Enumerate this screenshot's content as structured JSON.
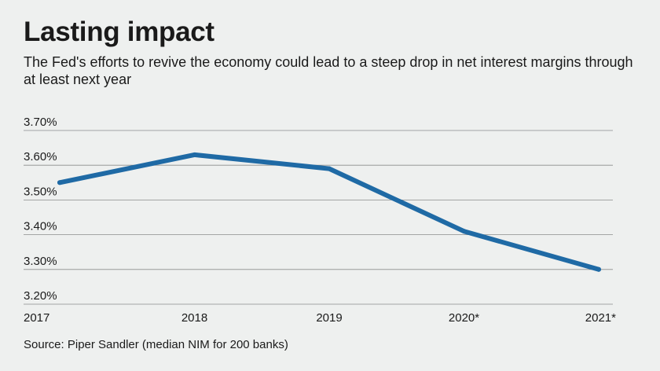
{
  "chart_data": {
    "type": "line",
    "title": "Lasting impact",
    "subtitle": "The Fed's efforts to revive the economy could lead to a steep drop in net interest margins through at least next year",
    "source": "Source: Piper Sandler (median NIM for 200 banks)",
    "categories": [
      "2017",
      "2018",
      "2019",
      "2020*",
      "2021*"
    ],
    "series": [
      {
        "name": "Median NIM",
        "values": [
          3.55,
          3.63,
          3.59,
          3.41,
          3.3
        ],
        "color": "#1f6aa5"
      }
    ],
    "y_ticks": [
      {
        "value": 3.7,
        "label": "3.70%"
      },
      {
        "value": 3.6,
        "label": "3.60%"
      },
      {
        "value": 3.5,
        "label": "3.50%"
      },
      {
        "value": 3.4,
        "label": "3.40%"
      },
      {
        "value": 3.3,
        "label": "3.30%"
      },
      {
        "value": 3.2,
        "label": "3.20%"
      }
    ],
    "ylim": [
      3.2,
      3.7
    ],
    "xlabel": "",
    "ylabel": "",
    "grid": true
  }
}
